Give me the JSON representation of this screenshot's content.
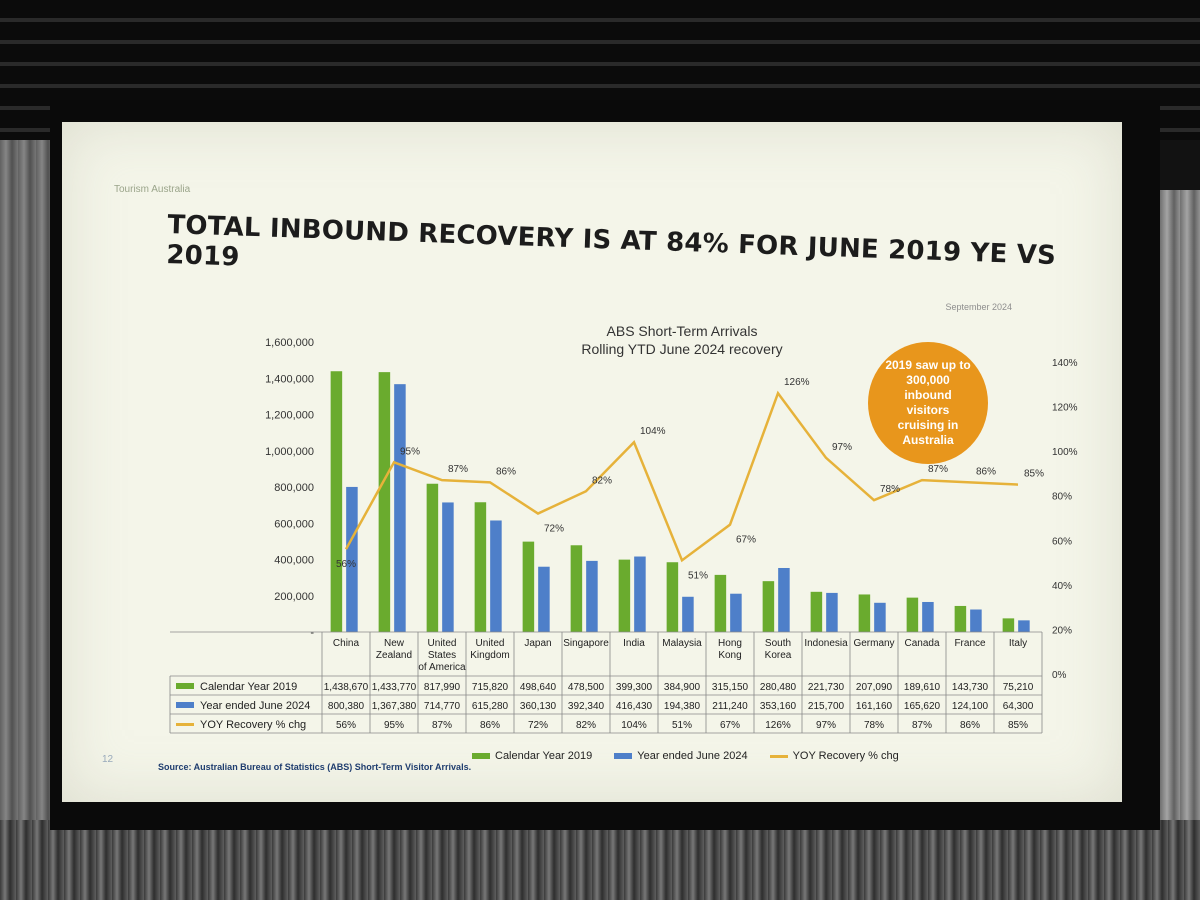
{
  "slide": {
    "brand": "Tourism Australia",
    "date": "September 2024",
    "headline": "TOTAL INBOUND RECOVERY IS AT 84% FOR JUNE 2019 YE VS 2019",
    "page_number": "12",
    "badge": "2019 saw up to 300,000 inbound visitors cruising in Australia",
    "source": "Source: Australian Bureau of Statistics (ABS) Short-Term Visitor Arrivals."
  },
  "colors": {
    "cal2019": "#6aab2e",
    "ye2024": "#4e7fc9",
    "yoy": "#e6b23a",
    "badge": "#e8961c"
  },
  "chart_data": {
    "type": "bar",
    "title": "ABS Short-Term Arrivals",
    "subtitle": "Rolling YTD June 2024 recovery",
    "categories": [
      "China",
      "New Zealand",
      "United States of America",
      "United Kingdom",
      "Japan",
      "Singapore",
      "India",
      "Malaysia",
      "Hong Kong",
      "South Korea",
      "Indonesia",
      "Germany",
      "Canada",
      "France",
      "Italy"
    ],
    "series": [
      {
        "name": "Calendar Year 2019",
        "type": "bar",
        "axis": "left",
        "values": [
          1438670,
          1433770,
          817990,
          715820,
          498640,
          478500,
          399300,
          384900,
          315150,
          280480,
          221730,
          207090,
          189610,
          143730,
          75210
        ],
        "labels": [
          "1,438,670",
          "1,433,770",
          "817,990",
          "715,820",
          "498,640",
          "478,500",
          "399,300",
          "384,900",
          "315,150",
          "280,480",
          "221,730",
          "207,090",
          "189,610",
          "143,730",
          "75,210"
        ]
      },
      {
        "name": "Year ended June 2024",
        "type": "bar",
        "axis": "left",
        "values": [
          800380,
          1367380,
          714770,
          615280,
          360130,
          392340,
          416430,
          194380,
          211240,
          353160,
          215700,
          161160,
          165620,
          124100,
          64300
        ],
        "labels": [
          "800,380",
          "1,367,380",
          "714,770",
          "615,280",
          "360,130",
          "392,340",
          "416,430",
          "194,380",
          "211,240",
          "353,160",
          "215,700",
          "161,160",
          "165,620",
          "124,100",
          "64,300"
        ]
      },
      {
        "name": "YOY Recovery % chg",
        "type": "line",
        "axis": "right",
        "values": [
          56,
          95,
          87,
          86,
          72,
          82,
          104,
          51,
          67,
          126,
          97,
          78,
          87,
          86,
          85
        ],
        "labels": [
          "56%",
          "95%",
          "87%",
          "86%",
          "72%",
          "82%",
          "104%",
          "51%",
          "67%",
          "126%",
          "97%",
          "78%",
          "87%",
          "86%",
          "85%"
        ]
      }
    ],
    "left_axis": {
      "range": [
        0,
        1600000
      ],
      "ticks": [
        "-",
        "200,000",
        "400,000",
        "600,000",
        "800,000",
        "1,000,000",
        "1,200,000",
        "1,400,000",
        "1,600,000"
      ]
    },
    "right_axis": {
      "range": [
        0,
        140
      ],
      "ticks": [
        "0%",
        "20%",
        "40%",
        "60%",
        "80%",
        "100%",
        "120%",
        "140%"
      ]
    },
    "legend_position": "bottom",
    "grid": false
  }
}
